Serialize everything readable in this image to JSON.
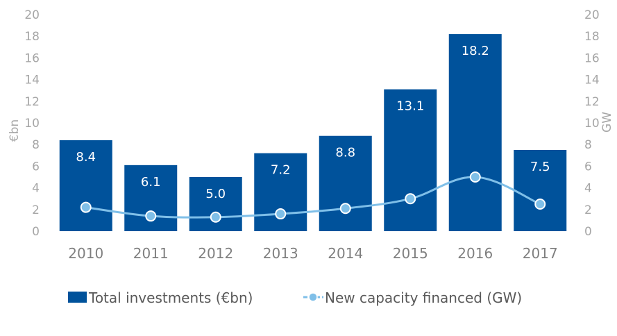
{
  "chart_data": {
    "type": "bar",
    "categories": [
      "2010",
      "2011",
      "2012",
      "2013",
      "2014",
      "2015",
      "2016",
      "2017"
    ],
    "series": [
      {
        "name": "Total investments (€bn)",
        "type": "bar",
        "axis": "left",
        "values": [
          8.4,
          6.1,
          5.0,
          7.2,
          8.8,
          13.1,
          18.2,
          7.5
        ],
        "labels": [
          "8.4",
          "6.1",
          "5.0",
          "7.2",
          "8.8",
          "13.1",
          "18.2",
          "7.5"
        ],
        "color": "#00529b"
      },
      {
        "name": "New capacity financed (GW)",
        "type": "line",
        "axis": "right",
        "values": [
          2.2,
          1.4,
          1.3,
          1.6,
          2.1,
          3.0,
          5.0,
          2.5
        ],
        "color": "#7fbfe8"
      }
    ],
    "ylabel": "€bn",
    "y2label": "GW",
    "ylim": [
      0,
      20
    ],
    "y2lim": [
      0,
      20
    ],
    "yticks": [
      "0",
      "2",
      "4",
      "6",
      "8",
      "10",
      "12",
      "14",
      "16",
      "18",
      "20"
    ],
    "y2ticks": [
      "0",
      "2",
      "4",
      "6",
      "8",
      "10",
      "12",
      "14",
      "16",
      "18",
      "20"
    ],
    "grid": false,
    "legend": "bottom"
  }
}
